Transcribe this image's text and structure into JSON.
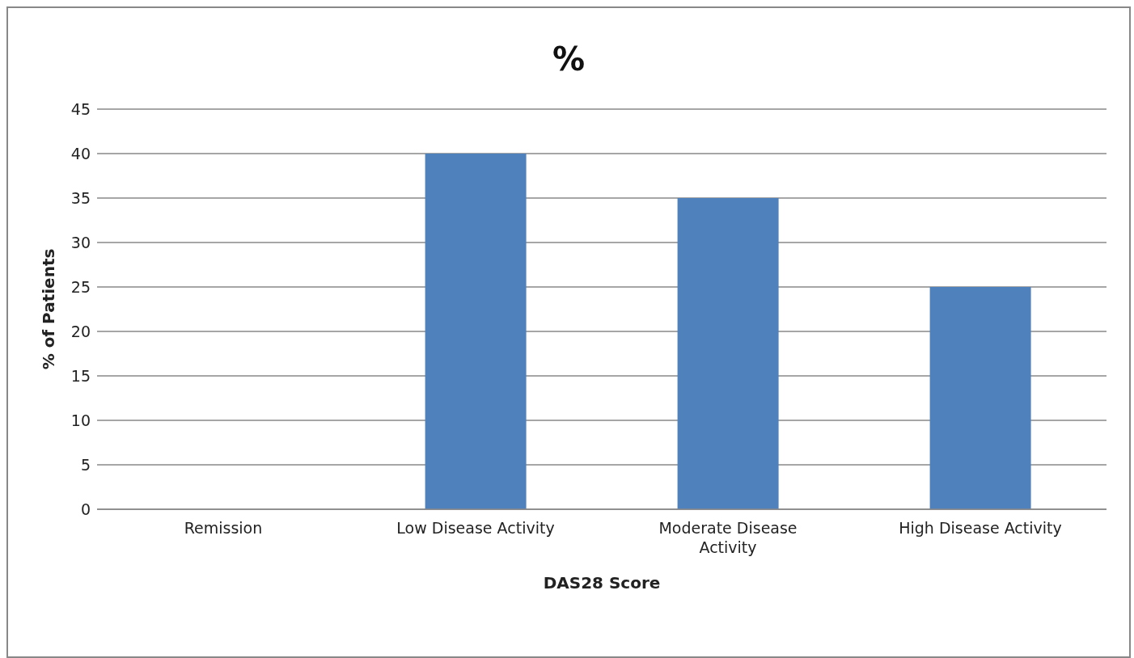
{
  "chart_data": {
    "type": "bar",
    "title": "%",
    "xlabel": "DAS28 Score",
    "ylabel": "% of Patients",
    "categories": [
      "Remission",
      "Low Disease Activity",
      "Moderate Disease Activity",
      "High Disease Activity"
    ],
    "values": [
      0,
      40,
      35,
      25
    ],
    "color": "#4f81bd",
    "ylim": [
      0,
      45
    ],
    "yticks": [
      0,
      5,
      10,
      15,
      20,
      25,
      30,
      35,
      40,
      45
    ],
    "grid": "y",
    "legend": false
  }
}
